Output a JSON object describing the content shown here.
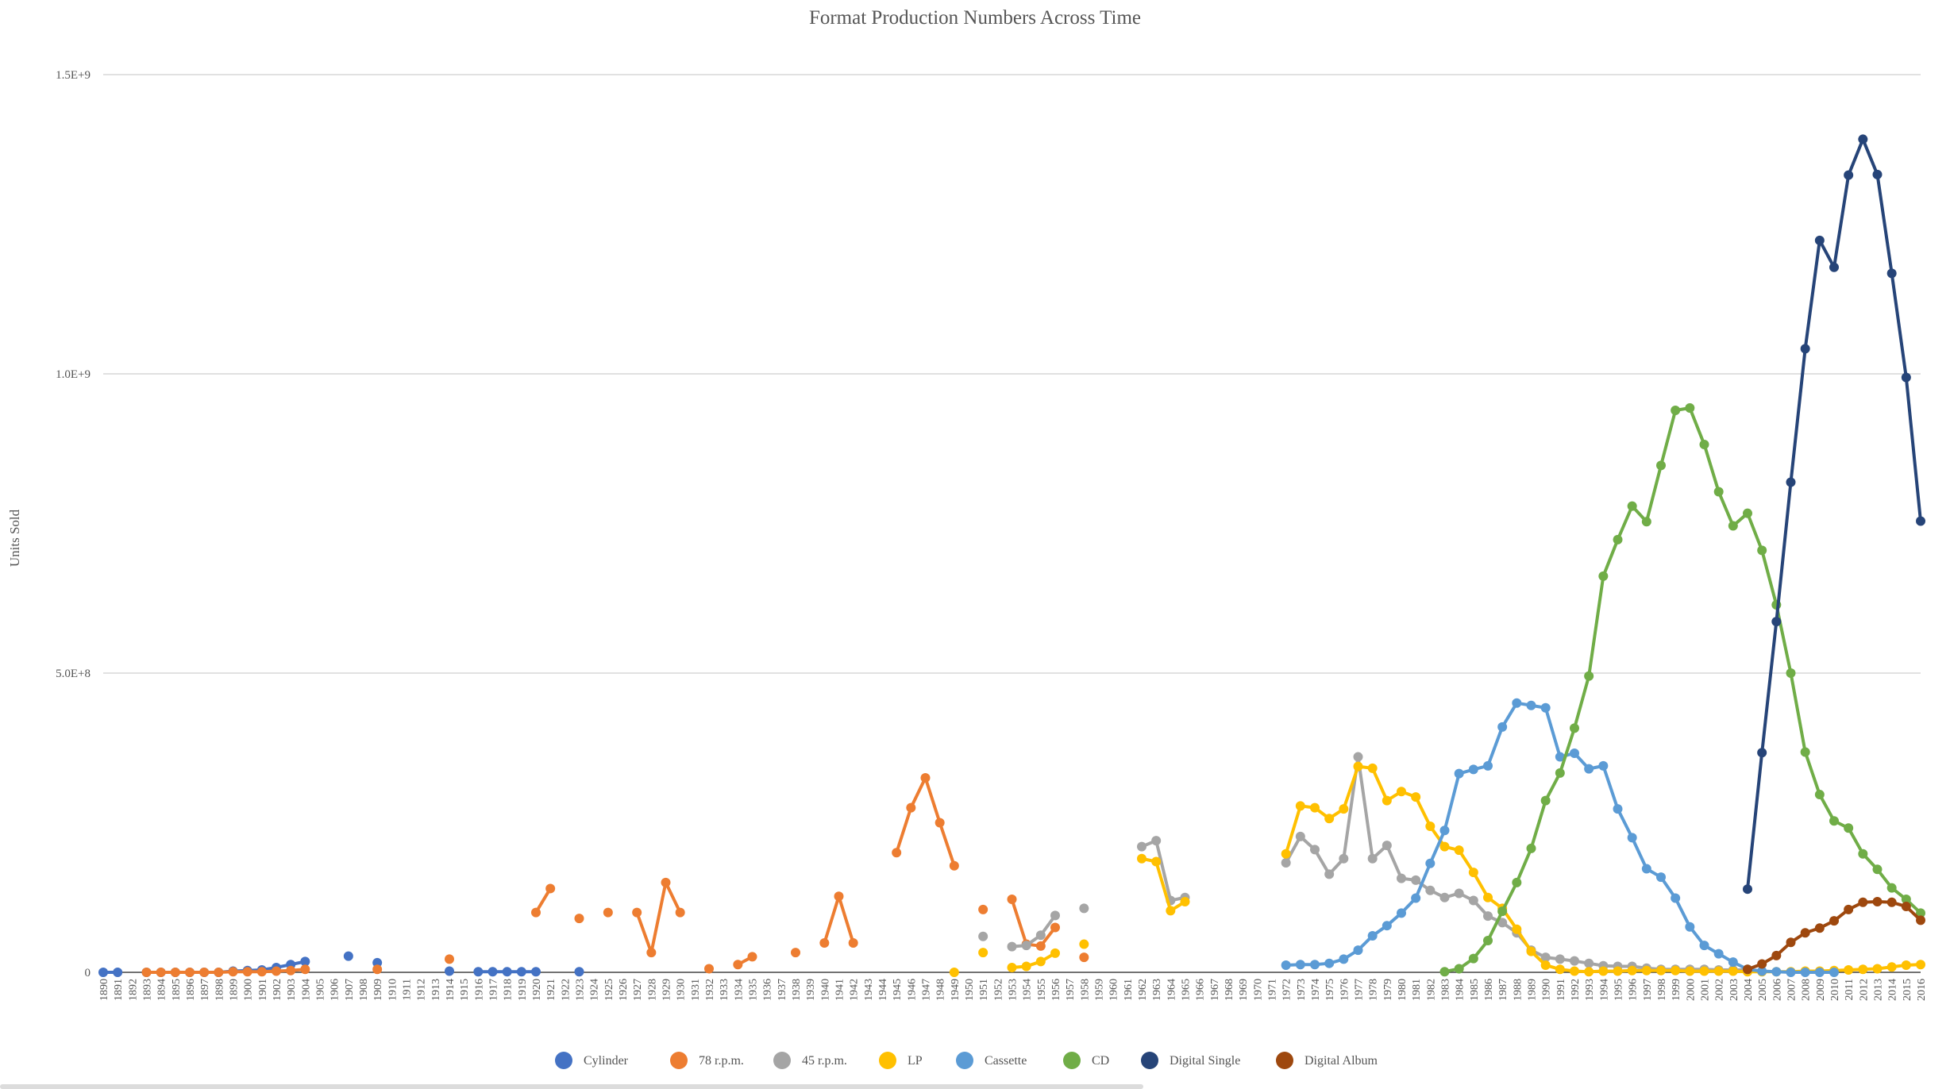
{
  "chart_data": {
    "type": "line",
    "title": "Format Production Numbers Across Time",
    "ylabel": "Units Sold",
    "xlabel": "",
    "ylim": [
      0,
      1500000000
    ],
    "yticks": [
      {
        "value": 0,
        "label": "0"
      },
      {
        "value": 500000000,
        "label": "5.0E+8"
      },
      {
        "value": 1000000000,
        "label": "1.0E+9"
      },
      {
        "value": 1500000000,
        "label": "1.5E+9"
      }
    ],
    "grid": true,
    "legend_position": "bottom",
    "categories": [
      "1890",
      "1891",
      "1892",
      "1893",
      "1894",
      "1895",
      "1896",
      "1897",
      "1898",
      "1899",
      "1900",
      "1901",
      "1902",
      "1903",
      "1904",
      "1905",
      "1906",
      "1907",
      "1908",
      "1909",
      "1910",
      "1911",
      "1912",
      "1913",
      "1914",
      "1915",
      "1916",
      "1917",
      "1918",
      "1919",
      "1920",
      "1921",
      "1922",
      "1923",
      "1924",
      "1925",
      "1926",
      "1927",
      "1928",
      "1929",
      "1930",
      "1931",
      "1932",
      "1933",
      "1934",
      "1935",
      "1936",
      "1937",
      "1938",
      "1939",
      "1940",
      "1941",
      "1942",
      "1943",
      "1944",
      "1945",
      "1946",
      "1947",
      "1948",
      "1949",
      "1950",
      "1951",
      "1952",
      "1953",
      "1954",
      "1955",
      "1956",
      "1957",
      "1958",
      "1959",
      "1960",
      "1961",
      "1962",
      "1963",
      "1964",
      "1965",
      "1966",
      "1967",
      "1968",
      "1969",
      "1970",
      "1971",
      "1972",
      "1973",
      "1974",
      "1975",
      "1976",
      "1977",
      "1978",
      "1979",
      "1980",
      "1981",
      "1982",
      "1983",
      "1984",
      "1985",
      "1986",
      "1987",
      "1988",
      "1989",
      "1990",
      "1991",
      "1992",
      "1993",
      "1994",
      "1995",
      "1996",
      "1997",
      "1998",
      "1999",
      "2000",
      "2001",
      "2002",
      "2003",
      "2004",
      "2005",
      "2006",
      "2007",
      "2008",
      "2009",
      "2010",
      "2011",
      "2012",
      "2013",
      "2014",
      "2015",
      "2016"
    ],
    "series": [
      {
        "name": "Cylinder",
        "color": "#4472c4",
        "data": [
          [
            1890,
            0
          ],
          [
            1891,
            0
          ],
          [
            1893,
            0
          ],
          [
            1894,
            0
          ],
          [
            1895,
            0
          ],
          [
            1896,
            0
          ],
          [
            1897,
            0
          ],
          [
            1898,
            0
          ],
          [
            1899,
            2000000
          ],
          [
            1900,
            3000000
          ],
          [
            1901,
            4000000
          ],
          [
            1902,
            8000000
          ],
          [
            1903,
            13000000
          ],
          [
            1904,
            18000000
          ],
          [
            1907,
            27000000
          ],
          [
            1909,
            16000000
          ],
          [
            1914,
            2000000
          ],
          [
            1916,
            1000000
          ],
          [
            1917,
            1000000
          ],
          [
            1918,
            1000000
          ],
          [
            1919,
            1000000
          ],
          [
            1920,
            1000000
          ],
          [
            1923,
            1000000
          ]
        ]
      },
      {
        "name": "78 r.p.m.",
        "color": "#ed7d31",
        "data": [
          [
            1893,
            0
          ],
          [
            1894,
            0
          ],
          [
            1895,
            0
          ],
          [
            1896,
            0
          ],
          [
            1897,
            0
          ],
          [
            1898,
            0
          ],
          [
            1899,
            1000000
          ],
          [
            1900,
            1000000
          ],
          [
            1901,
            1000000
          ],
          [
            1902,
            2000000
          ],
          [
            1903,
            3000000
          ],
          [
            1904,
            5000000
          ],
          [
            1909,
            5000000
          ],
          [
            1914,
            22000000
          ],
          [
            1920,
            100000000
          ],
          [
            1921,
            140000000
          ],
          [
            1923,
            90000000
          ],
          [
            1925,
            100000000
          ],
          [
            1927,
            100000000
          ],
          [
            1928,
            33000000
          ],
          [
            1929,
            150000000
          ],
          [
            1930,
            100000000
          ],
          [
            1932,
            6000000
          ],
          [
            1934,
            13000000
          ],
          [
            1935,
            26000000
          ],
          [
            1938,
            33000000
          ],
          [
            1940,
            49000000
          ],
          [
            1941,
            127000000
          ],
          [
            1942,
            49000000
          ],
          [
            1945,
            200000000
          ],
          [
            1946,
            275000000
          ],
          [
            1947,
            325000000
          ],
          [
            1948,
            250000000
          ],
          [
            1949,
            178000000
          ],
          [
            1951,
            105000000
          ],
          [
            1953,
            122000000
          ],
          [
            1954,
            47000000
          ],
          [
            1955,
            44000000
          ],
          [
            1956,
            75000000
          ],
          [
            1958,
            25000000
          ]
        ]
      },
      {
        "name": "45 r.p.m.",
        "color": "#a5a5a5",
        "data": [
          [
            1951,
            60000000
          ],
          [
            1953,
            43000000
          ],
          [
            1954,
            45000000
          ],
          [
            1955,
            62000000
          ],
          [
            1956,
            95000000
          ],
          [
            1958,
            107000000
          ],
          [
            1962,
            210000000
          ],
          [
            1963,
            220000000
          ],
          [
            1964,
            120000000
          ],
          [
            1965,
            125000000
          ],
          [
            1972,
            183000000
          ],
          [
            1973,
            227000000
          ],
          [
            1974,
            205000000
          ],
          [
            1975,
            164000000
          ],
          [
            1976,
            190000000
          ],
          [
            1977,
            360000000
          ],
          [
            1978,
            190000000
          ],
          [
            1979,
            212000000
          ],
          [
            1980,
            157000000
          ],
          [
            1981,
            154000000
          ],
          [
            1982,
            137000000
          ],
          [
            1983,
            125000000
          ],
          [
            1984,
            132000000
          ],
          [
            1985,
            120000000
          ],
          [
            1986,
            94000000
          ],
          [
            1987,
            83000000
          ],
          [
            1988,
            66000000
          ],
          [
            1989,
            37000000
          ],
          [
            1990,
            25000000
          ],
          [
            1991,
            22000000
          ],
          [
            1992,
            19000000
          ],
          [
            1993,
            15000000
          ],
          [
            1994,
            11000000
          ],
          [
            1995,
            10000000
          ],
          [
            1996,
            10000000
          ],
          [
            1997,
            7000000
          ],
          [
            1998,
            5000000
          ],
          [
            1999,
            5000000
          ],
          [
            2000,
            5000000
          ],
          [
            2001,
            5000000
          ],
          [
            2002,
            4000000
          ],
          [
            2003,
            4000000
          ],
          [
            2004,
            4000000
          ]
        ]
      },
      {
        "name": "LP",
        "color": "#ffc000",
        "data": [
          [
            1949,
            0
          ],
          [
            1951,
            33000000
          ],
          [
            1953,
            8000000
          ],
          [
            1954,
            10000000
          ],
          [
            1955,
            18000000
          ],
          [
            1956,
            32000000
          ],
          [
            1958,
            47000000
          ],
          [
            1962,
            190000000
          ],
          [
            1963,
            185000000
          ],
          [
            1964,
            103000000
          ],
          [
            1965,
            118000000
          ],
          [
            1972,
            198000000
          ],
          [
            1973,
            278000000
          ],
          [
            1974,
            275000000
          ],
          [
            1975,
            257000000
          ],
          [
            1976,
            273000000
          ],
          [
            1977,
            344000000
          ],
          [
            1978,
            341000000
          ],
          [
            1979,
            287000000
          ],
          [
            1980,
            302000000
          ],
          [
            1981,
            293000000
          ],
          [
            1982,
            244000000
          ],
          [
            1983,
            210000000
          ],
          [
            1984,
            204000000
          ],
          [
            1985,
            167000000
          ],
          [
            1986,
            125000000
          ],
          [
            1987,
            107000000
          ],
          [
            1988,
            72000000
          ],
          [
            1989,
            35000000
          ],
          [
            1990,
            12000000
          ],
          [
            1991,
            5000000
          ],
          [
            1992,
            2000000
          ],
          [
            1993,
            1000000
          ],
          [
            1994,
            2000000
          ],
          [
            1995,
            2000000
          ],
          [
            1996,
            3000000
          ],
          [
            1997,
            3000000
          ],
          [
            1998,
            3000000
          ],
          [
            1999,
            3000000
          ],
          [
            2000,
            2000000
          ],
          [
            2001,
            2000000
          ],
          [
            2002,
            2000000
          ],
          [
            2003,
            2000000
          ],
          [
            2004,
            1000000
          ],
          [
            2005,
            1000000
          ],
          [
            2006,
            1000000
          ],
          [
            2007,
            1000000
          ],
          [
            2008,
            2000000
          ],
          [
            2009,
            2000000
          ],
          [
            2010,
            3000000
          ],
          [
            2011,
            4000000
          ],
          [
            2012,
            5000000
          ],
          [
            2013,
            6000000
          ],
          [
            2014,
            9000000
          ],
          [
            2015,
            12000000
          ],
          [
            2016,
            13000000
          ]
        ]
      },
      {
        "name": "Cassette",
        "color": "#5b9bd5",
        "data": [
          [
            1972,
            12000000
          ],
          [
            1973,
            13000000
          ],
          [
            1974,
            13000000
          ],
          [
            1975,
            15000000
          ],
          [
            1976,
            22000000
          ],
          [
            1977,
            37000000
          ],
          [
            1978,
            61000000
          ],
          [
            1979,
            78000000
          ],
          [
            1980,
            99000000
          ],
          [
            1981,
            124000000
          ],
          [
            1982,
            182000000
          ],
          [
            1983,
            237000000
          ],
          [
            1984,
            332000000
          ],
          [
            1985,
            339000000
          ],
          [
            1986,
            345000000
          ],
          [
            1987,
            410000000
          ],
          [
            1988,
            450000000
          ],
          [
            1989,
            446000000
          ],
          [
            1990,
            442000000
          ],
          [
            1991,
            360000000
          ],
          [
            1992,
            366000000
          ],
          [
            1993,
            340000000
          ],
          [
            1994,
            345000000
          ],
          [
            1995,
            273000000
          ],
          [
            1996,
            225000000
          ],
          [
            1997,
            173000000
          ],
          [
            1998,
            159000000
          ],
          [
            1999,
            124000000
          ],
          [
            2000,
            76000000
          ],
          [
            2001,
            45000000
          ],
          [
            2002,
            31000000
          ],
          [
            2003,
            17000000
          ],
          [
            2004,
            5000000
          ],
          [
            2005,
            2000000
          ],
          [
            2006,
            1000000
          ],
          [
            2007,
            0
          ],
          [
            2008,
            0
          ],
          [
            2009,
            0
          ],
          [
            2010,
            0
          ]
        ]
      },
      {
        "name": "CD",
        "color": "#70ad47",
        "data": [
          [
            1983,
            1000000
          ],
          [
            1984,
            6000000
          ],
          [
            1985,
            23000000
          ],
          [
            1986,
            53000000
          ],
          [
            1987,
            102000000
          ],
          [
            1988,
            150000000
          ],
          [
            1989,
            207000000
          ],
          [
            1990,
            287000000
          ],
          [
            1991,
            333000000
          ],
          [
            1992,
            408000000
          ],
          [
            1993,
            495000000
          ],
          [
            1994,
            662000000
          ],
          [
            1995,
            723000000
          ],
          [
            1996,
            779000000
          ],
          [
            1997,
            753000000
          ],
          [
            1998,
            847000000
          ],
          [
            1999,
            939000000
          ],
          [
            2000,
            943000000
          ],
          [
            2001,
            882000000
          ],
          [
            2002,
            803000000
          ],
          [
            2003,
            746000000
          ],
          [
            2004,
            767000000
          ],
          [
            2005,
            705000000
          ],
          [
            2006,
            614000000
          ],
          [
            2007,
            500000000
          ],
          [
            2008,
            368000000
          ],
          [
            2009,
            297000000
          ],
          [
            2010,
            253000000
          ],
          [
            2011,
            241000000
          ],
          [
            2012,
            198000000
          ],
          [
            2013,
            172000000
          ],
          [
            2014,
            141000000
          ],
          [
            2015,
            122000000
          ],
          [
            2016,
            99000000
          ]
        ]
      },
      {
        "name": "Digital Single",
        "color": "#264478",
        "data": [
          [
            2004,
            139000000
          ],
          [
            2005,
            367000000
          ],
          [
            2006,
            586000000
          ],
          [
            2007,
            819000000
          ],
          [
            2008,
            1042000000
          ],
          [
            2009,
            1223000000
          ],
          [
            2010,
            1178000000
          ],
          [
            2011,
            1332000000
          ],
          [
            2012,
            1392000000
          ],
          [
            2013,
            1333000000
          ],
          [
            2014,
            1168000000
          ],
          [
            2015,
            994000000
          ],
          [
            2016,
            754000000
          ]
        ]
      },
      {
        "name": "Digital Album",
        "color": "#9e480e",
        "data": [
          [
            2004,
            5000000
          ],
          [
            2005,
            14000000
          ],
          [
            2006,
            28000000
          ],
          [
            2007,
            50000000
          ],
          [
            2008,
            66000000
          ],
          [
            2009,
            74000000
          ],
          [
            2010,
            86000000
          ],
          [
            2011,
            105000000
          ],
          [
            2012,
            117000000
          ],
          [
            2013,
            118000000
          ],
          [
            2014,
            117000000
          ],
          [
            2015,
            110000000
          ],
          [
            2016,
            87000000
          ]
        ]
      }
    ]
  }
}
